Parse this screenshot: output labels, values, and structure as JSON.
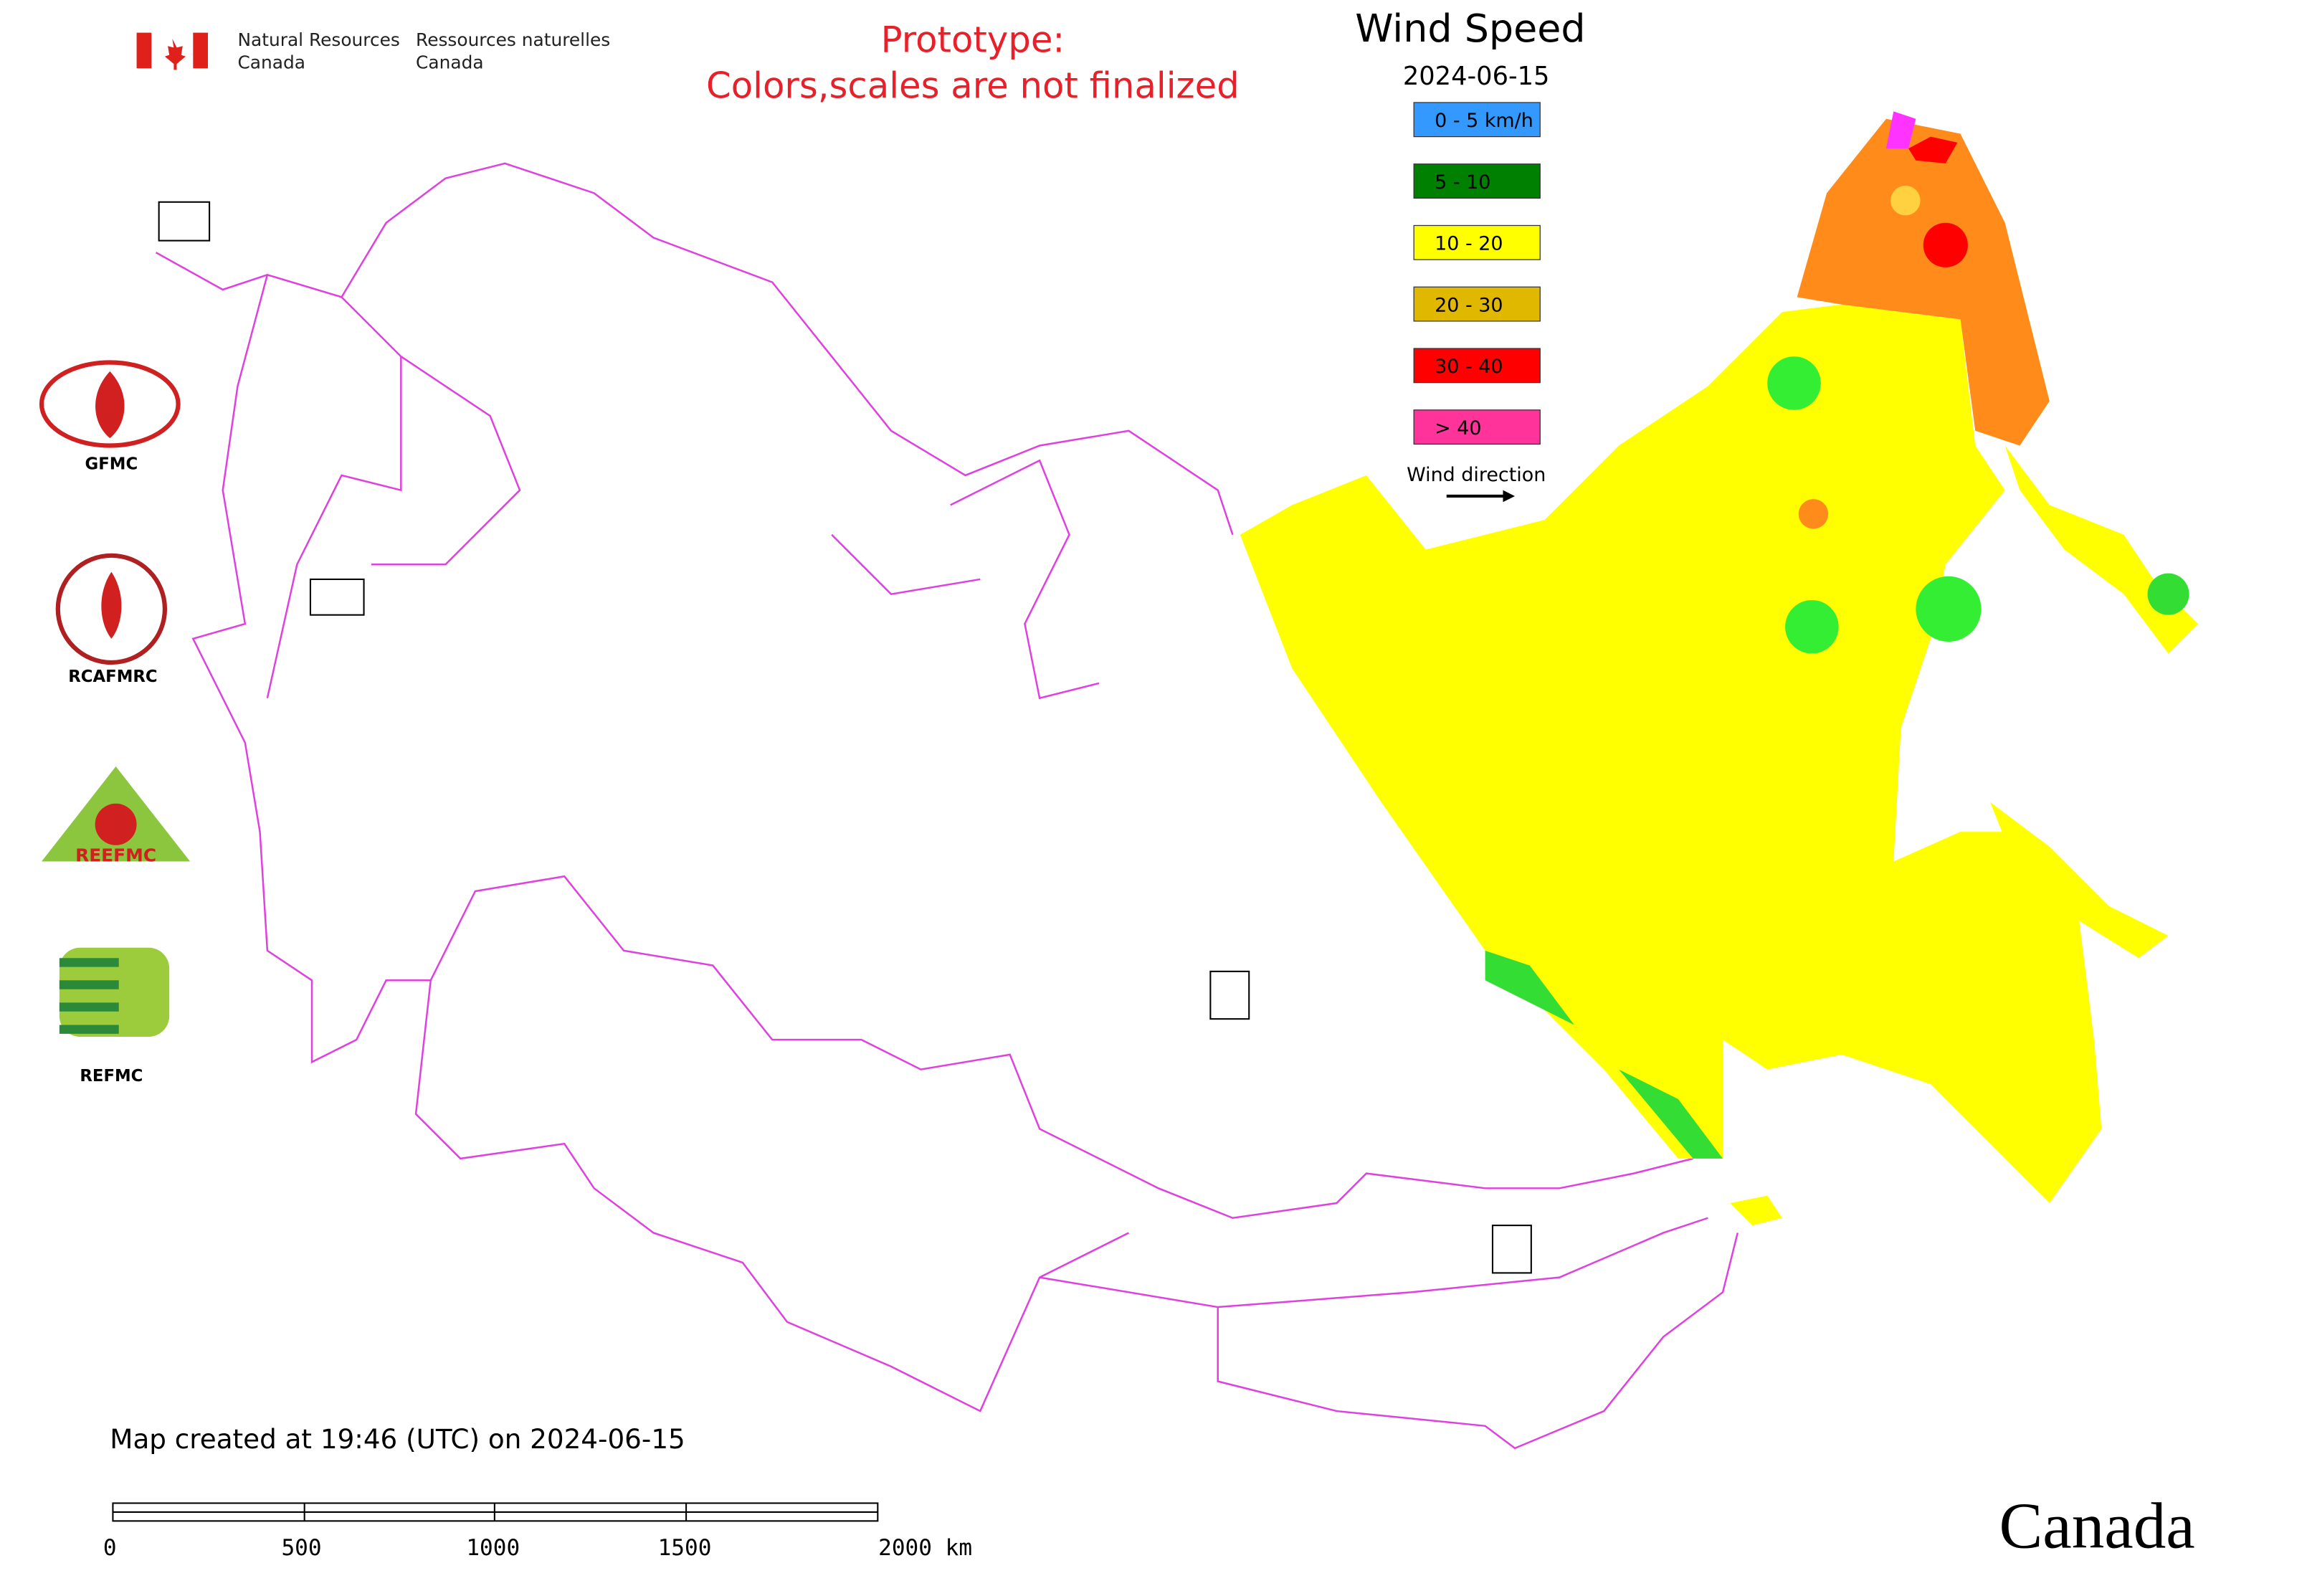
{
  "header": {
    "department_en": [
      "Natural Resources",
      "Canada"
    ],
    "department_fr": [
      "Ressources naturelles",
      "Canada"
    ]
  },
  "notice": [
    "Prototype:",
    "Colors,scales are not finalized"
  ],
  "legend": {
    "title": "Wind Speed",
    "date": "2024-06-15",
    "items": [
      {
        "label": "0 - 5 km/h",
        "color": "#3399ff"
      },
      {
        "label": "5 - 10",
        "color": "#008000"
      },
      {
        "label": "10 - 20",
        "color": "#ffff00"
      },
      {
        "label": "20 - 30",
        "color": "#e0b800"
      },
      {
        "label": "30 - 40",
        "color": "#ff0000"
      },
      {
        "label": "> 40",
        "color": "#ff3399"
      }
    ],
    "direction_label": "Wind direction"
  },
  "logos": [
    "GFMC",
    "RCAFMRC",
    "REEFMC",
    "REFMC"
  ],
  "footer": {
    "created": "Map created at 19:46 (UTC) on 2024-06-15",
    "scale_labels": [
      "0",
      "500",
      "1000",
      "1500",
      "2000 km"
    ],
    "wordmark": "Canada"
  }
}
